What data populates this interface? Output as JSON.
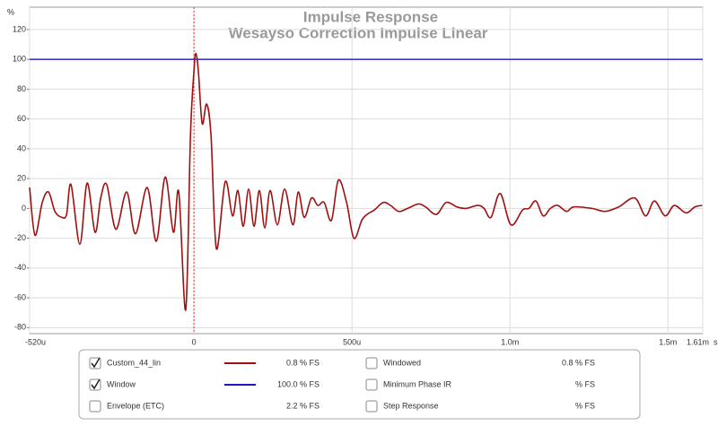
{
  "chart_data": {
    "type": "line",
    "title": "Impulse Response",
    "subtitle": "Wesayso Correction Impulse Linear",
    "y_unit": "%",
    "x_unit": "s",
    "xlim": [
      -520,
      1610
    ],
    "ylim": [
      -84,
      135
    ],
    "xticks": [
      {
        "value": -520,
        "label": "-520u"
      },
      0,
      {
        "value": 500,
        "label": "500u"
      },
      {
        "value": 1000,
        "label": "1.0m"
      },
      {
        "value": 1500,
        "label": "1.5m"
      },
      {
        "value": 1610,
        "label": "1.61m"
      }
    ],
    "yticks": [
      -80,
      -60,
      -40,
      -20,
      0,
      20,
      40,
      60,
      80,
      100,
      120
    ],
    "grid": true,
    "marker_x": {
      "value": 0,
      "color": "#e03030"
    },
    "series": [
      {
        "name": "Custom_44_lin",
        "color": "#a01010",
        "checked": true,
        "readout": "0.8 % FS",
        "x": [
          -520,
          -503,
          -480,
          -460,
          -440,
          -418,
          -403,
          -389,
          -361,
          -338,
          -313,
          -295,
          -276,
          -247,
          -213,
          -185,
          -148,
          -119,
          -91,
          -65,
          -48,
          -26,
          -11,
          0,
          6,
          14,
          26,
          40,
          54,
          71,
          99,
          122,
          139,
          156,
          173,
          190,
          207,
          224,
          241,
          264,
          287,
          313,
          330,
          349,
          372,
          392,
          412,
          435,
          457,
          483,
          506,
          531,
          548,
          571,
          599,
          622,
          648,
          676,
          710,
          733,
          767,
          798,
          832,
          861,
          898,
          918,
          940,
          969,
          1003,
          1040,
          1060,
          1082,
          1105,
          1128,
          1151,
          1179,
          1202,
          1259,
          1301,
          1344,
          1395,
          1429,
          1457,
          1491,
          1520,
          1557,
          1585,
          1608
        ],
        "values": [
          14,
          -18,
          4,
          11,
          -2,
          -6,
          -4,
          16,
          -24,
          17,
          -16,
          7,
          16,
          -14,
          11,
          -17,
          14,
          -22,
          21,
          -16,
          11,
          -68,
          49,
          92,
          104,
          92,
          57,
          70,
          49,
          -27,
          18,
          -5,
          12,
          -12,
          13,
          -12,
          12,
          -13,
          12,
          -11,
          13,
          -11,
          11,
          -6,
          7,
          2,
          4,
          -8,
          19,
          4,
          -20,
          -8,
          -4,
          -1,
          4,
          2,
          -2,
          0,
          3,
          1,
          -4,
          4,
          1,
          0,
          2,
          0,
          -6,
          10,
          -11,
          -1,
          0,
          5,
          -5,
          0,
          2,
          -2,
          1,
          0,
          -2,
          1,
          7,
          -5,
          5,
          -5,
          2,
          -3,
          1,
          2
        ]
      },
      {
        "name": "Window",
        "color": "#1818c8",
        "checked": true,
        "readout": "100.0 % FS",
        "x": [
          -520,
          1610
        ],
        "values": [
          100,
          100
        ]
      }
    ],
    "other_traces": [
      {
        "name": "Envelope (ETC)",
        "color": "#8b1a1a",
        "checked": false,
        "readout": "2.2 % FS"
      },
      {
        "name": "Windowed",
        "color": "#cc1f1f",
        "checked": false,
        "readout": "0.8 % FS"
      },
      {
        "name": "Minimum Phase IR",
        "color": "#999999",
        "checked": false,
        "readout": "% FS"
      },
      {
        "name": "Step Response",
        "color": "#8b1a1a",
        "checked": false,
        "readout": "% FS"
      }
    ]
  }
}
